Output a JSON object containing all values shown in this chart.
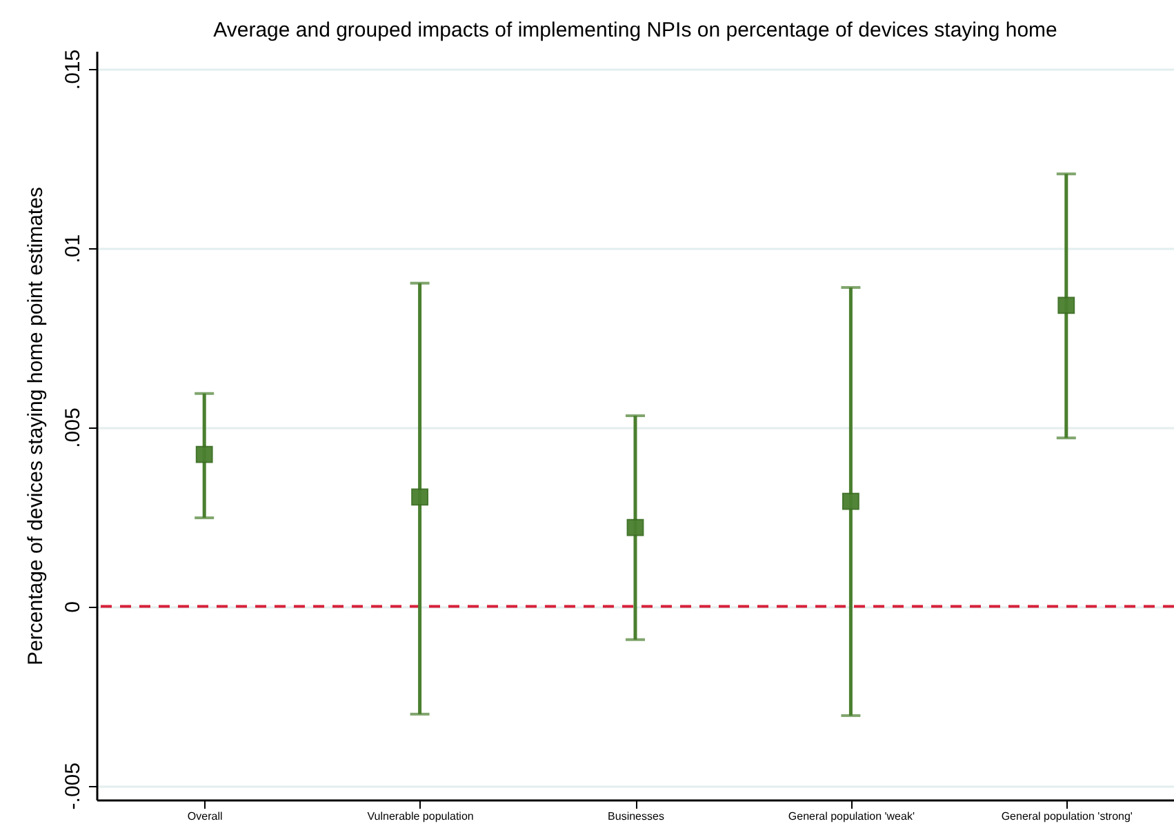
{
  "chart_data": {
    "type": "scatter",
    "title": "Average and grouped impacts of implementing NPIs on percentage of devices staying home",
    "ylabel": "Percentage of devices staying home point estimates",
    "categories": [
      "Overall",
      "Vulnerable population",
      "Businesses",
      "General population 'weak'",
      "General population 'strong'"
    ],
    "series": [
      {
        "color": "#4a7f2f",
        "values": [
          0.00424,
          0.00305,
          0.0022,
          0.00293,
          0.0084
        ],
        "errors": [
          [
            0.00247,
            0.00594
          ],
          [
            -0.00301,
            0.00902
          ],
          [
            -0.00093,
            0.00532
          ],
          [
            -0.00305,
            0.0089
          ],
          [
            0.0047,
            0.01207
          ]
        ]
      }
    ],
    "ylim": [
      -0.0054,
      0.0155
    ],
    "yticks": [
      {
        "value": -0.005,
        "label": "-.005"
      },
      {
        "value": 0,
        "label": "0"
      },
      {
        "value": 0.005,
        "label": ".005"
      },
      {
        "value": 0.01,
        "label": ".01"
      },
      {
        "value": 0.015,
        "label": ".015"
      }
    ],
    "grid": "y",
    "marker": "square",
    "ref_lines": [
      {
        "axis": "y",
        "value": 0,
        "color": "#d6213a",
        "line_style": "dashed"
      }
    ]
  }
}
